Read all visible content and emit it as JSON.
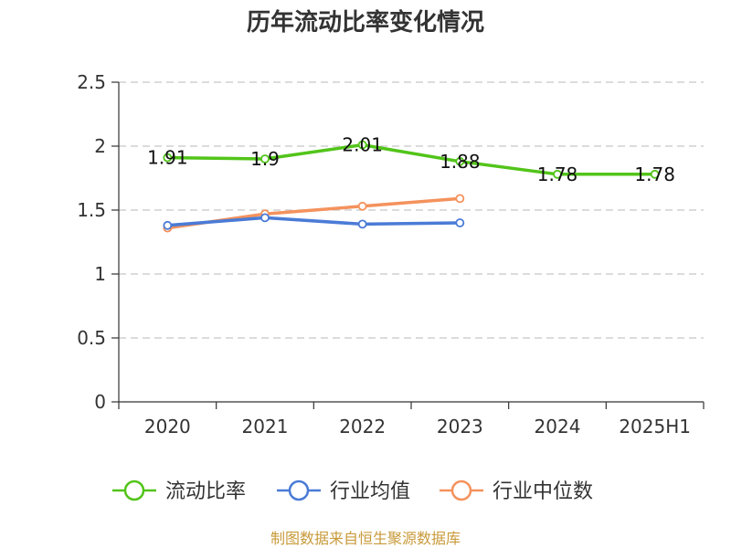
{
  "chart_data": {
    "type": "line",
    "title": "历年流动比率变化情况",
    "xlabel": "",
    "ylabel": "",
    "categories": [
      "2020",
      "2021",
      "2022",
      "2023",
      "2024",
      "2025H1"
    ],
    "ylim": [
      0,
      2.5
    ],
    "yticks": [
      "0",
      "0.5",
      "1",
      "1.5",
      "2",
      "2.5"
    ],
    "ytick_values": [
      0,
      0.5,
      1,
      1.5,
      2,
      2.5
    ],
    "grid": true,
    "legend_position": "bottom",
    "series": [
      {
        "name": "流动比率",
        "color": "#52c41a",
        "values": [
          1.91,
          1.9,
          2.01,
          1.88,
          1.78,
          1.78
        ],
        "labels": [
          "1.91",
          "1.9",
          "2.01",
          "1.88",
          "1.78",
          "1.78"
        ],
        "show_labels": true
      },
      {
        "name": "行业均值",
        "color": "#4a7bd6",
        "values": [
          1.38,
          1.44,
          1.39,
          1.4,
          null,
          null
        ],
        "show_labels": false
      },
      {
        "name": "行业中位数",
        "color": "#f4925d",
        "values": [
          1.36,
          1.47,
          1.53,
          1.59,
          null,
          null
        ],
        "show_labels": false
      }
    ]
  },
  "source_note": "制图数据来自恒生聚源数据库"
}
